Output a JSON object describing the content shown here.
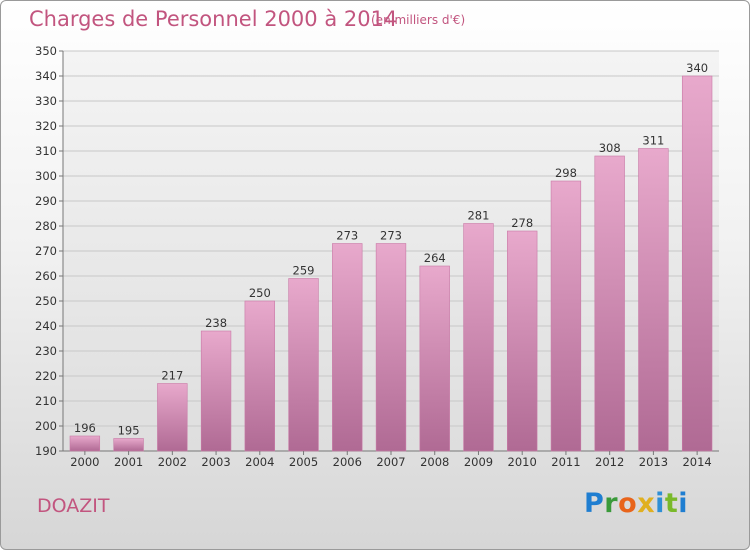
{
  "chart_data": {
    "type": "bar",
    "title": "Charges de Personnel 2000 à 2014",
    "subtitle": "(en milliers d'€)",
    "categories": [
      "2000",
      "2001",
      "2002",
      "2003",
      "2004",
      "2005",
      "2006",
      "2007",
      "2008",
      "2009",
      "2010",
      "2011",
      "2012",
      "2013",
      "2014"
    ],
    "values": [
      196,
      195,
      217,
      238,
      250,
      259,
      273,
      273,
      264,
      281,
      278,
      298,
      308,
      311,
      340
    ],
    "ylim": [
      190,
      350
    ],
    "yticks": [
      190,
      200,
      210,
      220,
      230,
      240,
      250,
      260,
      270,
      280,
      290,
      300,
      310,
      320,
      330,
      340,
      350
    ],
    "grid": true,
    "bar_color": "#d58ab4"
  },
  "city": "DOAZIT",
  "logo_text": "Proxiti"
}
